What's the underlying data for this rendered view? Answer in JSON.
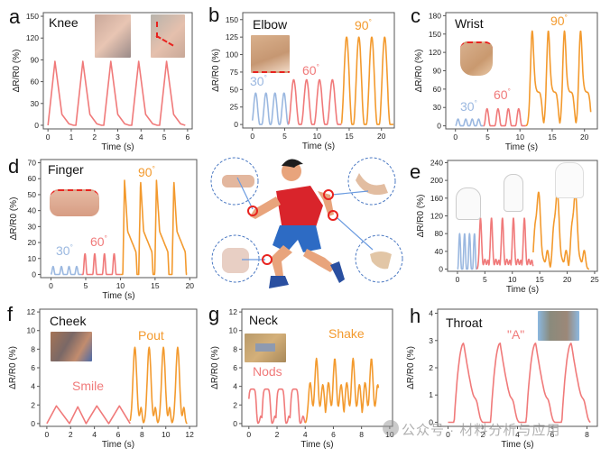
{
  "figure": {
    "watermark": "公众号 · 材料分析与应用",
    "colors": {
      "low": "#9bb8e0",
      "mid": "#f07a7a",
      "high": "#f39a2e",
      "axis": "#555555",
      "text": "#111111",
      "highlight_circle": "#e8231f",
      "dashed_circle": "#4a78c2"
    },
    "center_illustration": {
      "description": "running-man",
      "callouts": [
        "finger-joint",
        "knee-joint",
        "elbow-joint",
        "wrist-joint"
      ]
    }
  },
  "chart_data": [
    {
      "id": "a",
      "type": "line",
      "title": "Knee",
      "xlabel": "Time (s)",
      "ylabel": "ΔR/R0 (%)",
      "xlim": [
        -0.2,
        6.2
      ],
      "ylim": [
        -5,
        155
      ],
      "xticks": [
        0,
        1,
        2,
        3,
        4,
        5,
        6
      ],
      "yticks": [
        0,
        30,
        60,
        90,
        120,
        150
      ],
      "annotations": [],
      "series": [
        {
          "name": "knee",
          "color": "mid",
          "x": [
            0,
            0.3,
            0.6,
            0.9,
            1.1,
            1.2,
            1.5,
            1.8,
            2.1,
            2.3,
            2.4,
            2.7,
            3.0,
            3.3,
            3.5,
            3.6,
            3.9,
            4.2,
            4.5,
            4.7,
            4.8,
            5.1,
            5.4,
            5.7,
            5.9
          ],
          "y": [
            0,
            88,
            15,
            2,
            0,
            0,
            88,
            15,
            2,
            0,
            0,
            88,
            15,
            2,
            0,
            0,
            88,
            15,
            2,
            0,
            0,
            88,
            15,
            2,
            0
          ]
        }
      ]
    },
    {
      "id": "b",
      "type": "line",
      "title": "Elbow",
      "xlabel": "Time (s)",
      "ylabel": "ΔR/R0 (%)",
      "xlim": [
        -1.5,
        22
      ],
      "ylim": [
        -5,
        160
      ],
      "xticks": [
        0,
        5,
        10,
        15,
        20
      ],
      "yticks": [
        0,
        25,
        50,
        75,
        100,
        125,
        150
      ],
      "annotations": [
        {
          "text": "30",
          "sup": "°",
          "color": "low"
        },
        {
          "text": "60",
          "sup": "°",
          "color": "mid"
        },
        {
          "text": "90",
          "sup": "°",
          "color": "high"
        }
      ],
      "series": [
        {
          "name": "30°",
          "color": "low",
          "peaks": [
            0.5,
            2.1,
            3.5,
            4.9
          ],
          "peak": 45,
          "half": 0.65,
          "start": 0,
          "end": 5.6
        },
        {
          "name": "60°",
          "color": "mid",
          "peaks": [
            6.4,
            8.4,
            10.4,
            12.4
          ],
          "peak": 64,
          "half": 0.85,
          "start": 5.6,
          "end": 13.8
        },
        {
          "name": "90°",
          "color": "high",
          "peaks": [
            14.6,
            16.5,
            18.5,
            20.5
          ],
          "peak": 125,
          "half": 0.85,
          "start": 13.8,
          "end": 21.9
        }
      ]
    },
    {
      "id": "c",
      "type": "line",
      "title": "Wrist",
      "xlabel": "Time (s)",
      "ylabel": "ΔR/R0 (%)",
      "xlim": [
        -1.5,
        22
      ],
      "ylim": [
        -5,
        185
      ],
      "xticks": [
        0,
        5,
        10,
        15,
        20
      ],
      "yticks": [
        0,
        30,
        60,
        90,
        120,
        150,
        180
      ],
      "annotations": [
        {
          "text": "30",
          "sup": "°",
          "color": "low"
        },
        {
          "text": "60",
          "sup": "°",
          "color": "mid"
        },
        {
          "text": "90",
          "sup": "°",
          "color": "high"
        }
      ],
      "series": [
        {
          "name": "30°",
          "color": "low",
          "peaks": [
            0.4,
            1.6,
            2.6,
            3.6
          ],
          "peak": 11,
          "half": 0.4,
          "start": 0,
          "end": 4.3
        },
        {
          "name": "60°",
          "color": "mid",
          "peaks": [
            4.9,
            6.6,
            8.2,
            9.8
          ],
          "peak": 28,
          "half": 0.5,
          "start": 4.3,
          "end": 10.9
        },
        {
          "name": "90°",
          "color": "high",
          "peaks": [
            11.9,
            14.4,
            16.9,
            19.4
          ],
          "peak": 155,
          "shoulder": 55,
          "start": 10.9,
          "end": 21
        }
      ]
    },
    {
      "id": "d",
      "type": "line",
      "title": "Finger",
      "xlabel": "Time (s)",
      "ylabel": "ΔR/R0 (%)",
      "xlim": [
        -1.5,
        21
      ],
      "ylim": [
        -2,
        72
      ],
      "xticks": [
        0,
        5,
        10,
        15,
        20
      ],
      "yticks": [
        0,
        10,
        20,
        30,
        40,
        50,
        60,
        70
      ],
      "annotations": [
        {
          "text": "30",
          "sup": "°",
          "color": "low"
        },
        {
          "text": "60",
          "sup": "°",
          "color": "mid"
        },
        {
          "text": "90",
          "sup": "°",
          "color": "high"
        }
      ],
      "series": [
        {
          "name": "30°",
          "color": "low",
          "peaks": [
            0.3,
            1.5,
            2.6,
            3.7
          ],
          "peak": 5,
          "half": 0.3,
          "start": 0,
          "end": 4.4
        },
        {
          "name": "60°",
          "color": "mid",
          "peaks": [
            4.9,
            6.3,
            7.7,
            9.1
          ],
          "peak": 13,
          "half": 0.3,
          "start": 4.4,
          "end": 10
        },
        {
          "name": "90°",
          "color": "high",
          "peaks": [
            10.6,
            12.9,
            15.2,
            17.7
          ],
          "peak": 59,
          "sawtooth": [
            27,
            14
          ],
          "start": 10,
          "end": 19.6
        }
      ]
    },
    {
      "id": "e",
      "type": "line",
      "title": "",
      "xlabel": "Time (s)",
      "ylabel": "ΔR/R0 (%)",
      "xlim": [
        -1.8,
        25.5
      ],
      "ylim": [
        -5,
        245
      ],
      "xticks": [
        0,
        5,
        10,
        15,
        20,
        25
      ],
      "yticks": [
        0,
        40,
        80,
        120,
        160,
        200,
        240
      ],
      "annotations": [],
      "series": [
        {
          "name": "sit",
          "color": "low",
          "peaks": [
            0.4,
            1.3,
            2.2,
            3.1
          ],
          "peak": 80,
          "half": 0.35,
          "start": 0,
          "end": 3.5
        },
        {
          "name": "walk",
          "color": "mid",
          "peaks": [
            4.2,
            6.2,
            8.2,
            10.2,
            12.2
          ],
          "peak": 115,
          "tail": 22,
          "start": 3.5,
          "end": 13.8
        },
        {
          "name": "run",
          "color": "high",
          "peaks": [
            14.8,
            18.2,
            21.5
          ],
          "peak": 172,
          "pre": 90,
          "tail": 42,
          "start": 13.8,
          "end": 24
        }
      ]
    },
    {
      "id": "f",
      "type": "line",
      "title": "Cheek",
      "xlabel": "Time (s)",
      "ylabel": "ΔR/R0 (%)",
      "xlim": [
        -0.6,
        12.6
      ],
      "ylim": [
        -0.3,
        12.3
      ],
      "xticks": [
        0,
        2,
        4,
        6,
        8,
        10,
        12
      ],
      "yticks": [
        0,
        2,
        4,
        6,
        8,
        10,
        12
      ],
      "annotations": [
        {
          "text": "Smile",
          "color": "mid"
        },
        {
          "text": "Pout",
          "color": "high"
        }
      ],
      "series": [
        {
          "name": "Smile",
          "color": "mid",
          "x": [
            0,
            0.8,
            1.9,
            2.6,
            3.3,
            4.2,
            5.2,
            6.1,
            7.0
          ],
          "y": [
            0,
            1.9,
            0,
            1.8,
            0,
            1.9,
            0,
            1.9,
            0
          ]
        },
        {
          "name": "Pout",
          "color": "high",
          "peaks": [
            7.4,
            8.6,
            9.8,
            11.0
          ],
          "peak": 8.2,
          "second": 1.7,
          "start": 7.0,
          "end": 11.8
        }
      ]
    },
    {
      "id": "g",
      "type": "line",
      "title": "Neck",
      "xlabel": "Time (s)",
      "ylabel": "ΔR/R0 (%)",
      "xlim": [
        -0.5,
        10.2
      ],
      "ylim": [
        -0.3,
        12.3
      ],
      "xticks": [
        0,
        2,
        4,
        6,
        8,
        10
      ],
      "yticks": [
        0,
        2,
        4,
        6,
        8,
        10,
        12
      ],
      "annotations": [
        {
          "text": "Nods",
          "color": "mid"
        },
        {
          "text": "Shake",
          "color": "high"
        }
      ],
      "series": [
        {
          "name": "Nods",
          "color": "mid",
          "peaks": [
            0.25,
            1.25,
            2.25,
            3.25
          ],
          "peak": 3.7,
          "start": 0,
          "end": 4.0
        },
        {
          "name": "Shake",
          "color": "high",
          "peaks": [
            4.8,
            6.1,
            7.4,
            8.7
          ],
          "peak": 7.0,
          "pre": 4.4,
          "start": 4.0,
          "end": 9.2
        }
      ]
    },
    {
      "id": "h",
      "type": "line",
      "title": "Throat",
      "xlabel": "Time (s)",
      "ylabel": "ΔR/R0 (%)",
      "xlim": [
        -0.6,
        8.6
      ],
      "ylim": [
        -0.15,
        4.15
      ],
      "xticks": [
        0,
        2,
        4,
        6,
        8
      ],
      "yticks": [
        0,
        1,
        2,
        3,
        4
      ],
      "annotations": [
        {
          "text": "\"A\"",
          "color": "mid"
        }
      ],
      "series": [
        {
          "name": "A",
          "color": "mid",
          "peaks": [
            0.9,
            3.0,
            5.05,
            7.1
          ],
          "peak": 2.9,
          "start": 0,
          "end": 8.2
        }
      ]
    }
  ]
}
